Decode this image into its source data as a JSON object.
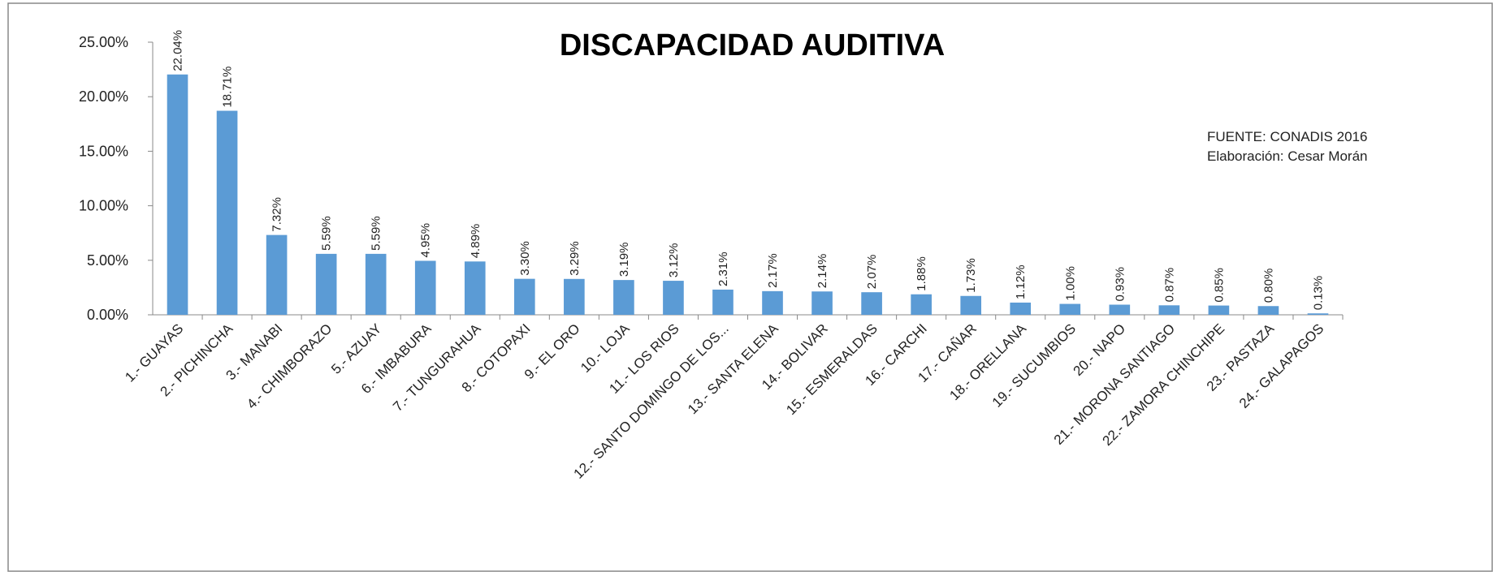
{
  "chart_data": {
    "type": "bar",
    "title": "DISCAPACIDAD AUDITIVA",
    "annotations": [
      "FUENTE: CONADIS 2016",
      "Elaboración: Cesar Morán"
    ],
    "categories": [
      "1.- GUAYAS",
      "2.- PICHINCHA",
      "3.- MANABI",
      "4.- CHIMBORAZO",
      "5.- AZUAY",
      "6.- IMBABURA",
      "7.- TUNGURAHUA",
      "8.- COTOPAXI",
      "9.- EL ORO",
      "10.- LOJA",
      "11.- LOS RIOS",
      "12.- SANTO DOMINGO DE LOS...",
      "13.- SANTA ELENA",
      "14.- BOLIVAR",
      "15.- ESMERALDAS",
      "16.- CARCHI",
      "17.- CAÑAR",
      "18.- ORELLANA",
      "19.- SUCUMBIOS",
      "20.- NAPO",
      "21.- MORONA SANTIAGO",
      "22.- ZAMORA CHINCHIPE",
      "23.- PASTAZA",
      "24.- GALAPAGOS"
    ],
    "values": [
      22.04,
      18.71,
      7.32,
      5.59,
      5.59,
      4.95,
      4.89,
      3.3,
      3.29,
      3.19,
      3.12,
      2.31,
      2.17,
      2.14,
      2.07,
      1.88,
      1.73,
      1.12,
      1.0,
      0.93,
      0.87,
      0.85,
      0.8,
      0.13
    ],
    "value_labels": [
      "22.04%",
      "18.71%",
      "7.32%",
      "5.59%",
      "5.59%",
      "4.95%",
      "4.89%",
      "3.30%",
      "3.29%",
      "3.19%",
      "3.12%",
      "2.31%",
      "2.17%",
      "2.14%",
      "2.07%",
      "1.88%",
      "1.73%",
      "1.12%",
      "1.00%",
      "0.93%",
      "0.87%",
      "0.85%",
      "0.80%",
      "0.13%"
    ],
    "color": "#5b9bd5",
    "ylim": [
      0,
      25
    ],
    "yticks": [
      {
        "value": 0,
        "label": "0.00%"
      },
      {
        "value": 5,
        "label": "5.00%"
      },
      {
        "value": 10,
        "label": "10.00%"
      },
      {
        "value": 15,
        "label": "15.00%"
      },
      {
        "value": 20,
        "label": "20.00%"
      },
      {
        "value": 25,
        "label": "25.00%"
      }
    ],
    "grid": false
  }
}
